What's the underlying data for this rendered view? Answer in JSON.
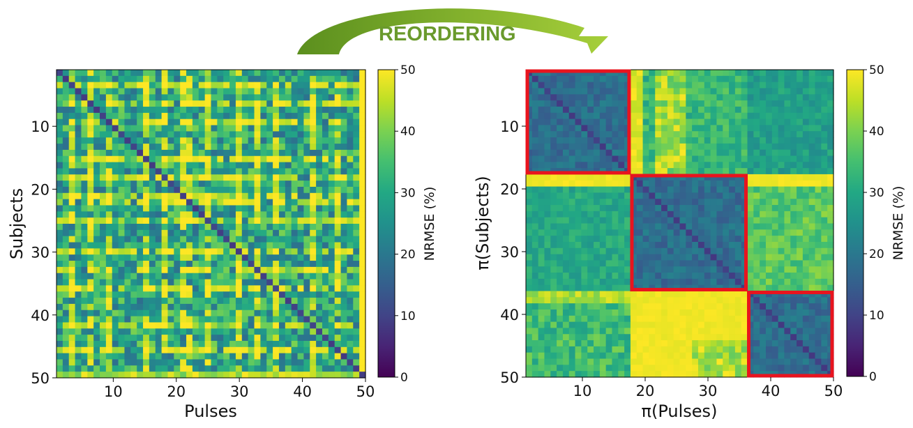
{
  "annotation": {
    "text": "REORDERING",
    "arrow_color": "#7fae2a"
  },
  "colormap": {
    "name": "viridis",
    "range": [
      0,
      50
    ]
  },
  "chart_data": [
    {
      "type": "heatmap",
      "xlabel": "Pulses",
      "ylabel": "Subjects",
      "x_ticks": [
        10,
        20,
        30,
        40,
        50
      ],
      "y_ticks": [
        10,
        20,
        30,
        40,
        50
      ],
      "x_range": [
        1,
        50
      ],
      "y_range": [
        1,
        50
      ],
      "colorbar": {
        "label": "NRMSE (%)",
        "ticks": [
          0,
          10,
          20,
          30,
          40,
          50
        ],
        "range": [
          0,
          50
        ]
      },
      "highlight_boxes": [],
      "notes": "50x50 NRMSE matrix before reordering; diagonal near 10%, scattered saturated (>=50%) rows/columns"
    },
    {
      "type": "heatmap",
      "xlabel": "π(Pulses)",
      "ylabel": "π(Subjects)",
      "x_ticks": [
        10,
        20,
        30,
        40,
        50
      ],
      "y_ticks": [
        10,
        20,
        30,
        40,
        50
      ],
      "x_range": [
        1,
        50
      ],
      "y_range": [
        1,
        50
      ],
      "colorbar": {
        "label": "NRMSE (%)",
        "ticks": [
          0,
          10,
          20,
          30,
          40,
          50
        ],
        "range": [
          0,
          50
        ]
      },
      "highlight_boxes": [
        {
          "x": [
            1,
            17
          ],
          "y": [
            1,
            17
          ],
          "color": "#e8141e"
        },
        {
          "x": [
            18,
            36
          ],
          "y": [
            18,
            36
          ],
          "color": "#e8141e"
        },
        {
          "x": [
            37,
            50
          ],
          "y": [
            37,
            50
          ],
          "color": "#e8141e"
        }
      ],
      "notes": "Reordered matrix showing three block-diagonal clusters (subjects 1-17, 18-36, 37-50)"
    }
  ]
}
